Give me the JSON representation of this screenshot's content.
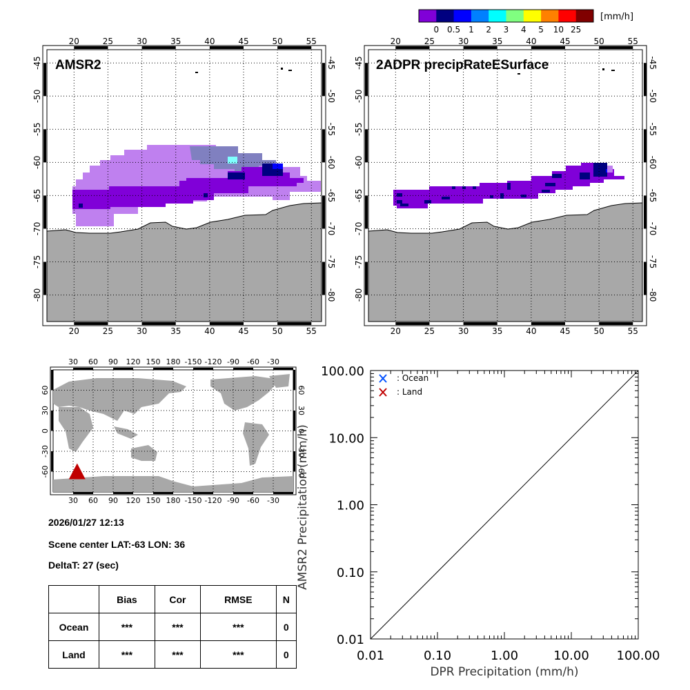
{
  "colorbar": {
    "unit": "[mm/h]",
    "colors": [
      "#8000d8",
      "#000080",
      "#0000ff",
      "#0080ff",
      "#00ffff",
      "#80ff80",
      "#ffff00",
      "#ff8000",
      "#ff0000",
      "#800000"
    ],
    "labels": [
      "0",
      "0.5",
      "1",
      "2",
      "3",
      "4",
      "5",
      "10",
      "25"
    ]
  },
  "maps": [
    {
      "title": "AMSR2",
      "lon_ticks": [
        "20",
        "25",
        "30",
        "35",
        "40",
        "45",
        "50",
        "55"
      ],
      "lat_ticks": [
        "-45",
        "-50",
        "-55",
        "-60",
        "-65",
        "-70",
        "-75",
        "-80"
      ],
      "lon_range": [
        16,
        56.5
      ],
      "lat_range": [
        -43,
        -84
      ]
    },
    {
      "title": "2ADPR precipRateESurface",
      "lon_ticks": [
        "20",
        "25",
        "30",
        "35",
        "40",
        "45",
        "50",
        "55"
      ],
      "lat_ticks": [
        "-45",
        "-50",
        "-55",
        "-60",
        "-65",
        "-70",
        "-75",
        "-80"
      ],
      "lon_range": [
        16,
        56.5
      ],
      "lat_range": [
        -43,
        -84
      ]
    }
  ],
  "world_map": {
    "lon_ticks": [
      "30",
      "60",
      "90",
      "120",
      "150",
      "180",
      "-150",
      "-120",
      "-90",
      "-60",
      "-30"
    ],
    "lat_ticks": [
      "60",
      "30",
      "0",
      "-30",
      "-60"
    ],
    "marker": {
      "lat": -63,
      "lon": 36,
      "color": "#c00000"
    }
  },
  "info": {
    "datetime": "2026/01/27 12:13",
    "scene_center": "Scene center LAT:-63   LON:  36",
    "delta_t": "DeltaT:   27 (sec)"
  },
  "stats_table": {
    "headers": [
      "",
      "Bias",
      "Cor",
      "RMSE",
      "N"
    ],
    "rows": [
      {
        "label": "Ocean",
        "bias": "***",
        "cor": "***",
        "rmse": "***",
        "n": "0"
      },
      {
        "label": "Land",
        "bias": "***",
        "cor": "***",
        "rmse": "***",
        "n": "0"
      }
    ]
  },
  "chart_data": {
    "type": "scatter",
    "title": "",
    "xlabel": "DPR Precipitation (mm/h)",
    "ylabel": "AMSR2 Precipitation (mm/h)",
    "xscale": "log",
    "yscale": "log",
    "xlim": [
      0.01,
      100
    ],
    "ylim": [
      0.01,
      100
    ],
    "x_ticks": [
      "0.01",
      "0.10",
      "1.00",
      "10.00",
      "100.00"
    ],
    "y_ticks": [
      "0.01",
      "0.10",
      "1.00",
      "10.00",
      "100.00"
    ],
    "legend": [
      {
        "name": ": Ocean",
        "marker": "x",
        "color": "#0050ff"
      },
      {
        "name": ": Land",
        "marker": "x",
        "color": "#c00000"
      }
    ],
    "legend_position": "top-left",
    "series": [
      {
        "name": "Ocean",
        "points": []
      },
      {
        "name": "Land",
        "points": []
      }
    ],
    "reference_line": {
      "type": "1:1",
      "from": [
        0.01,
        0.01
      ],
      "to": [
        100,
        100
      ]
    }
  }
}
